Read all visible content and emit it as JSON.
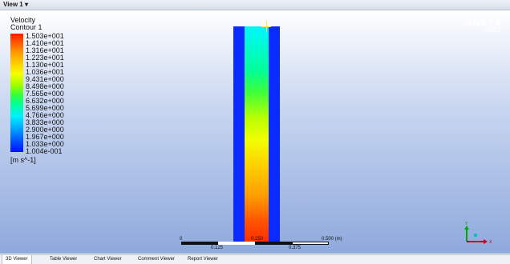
{
  "window": {
    "title": "View 1 ▾"
  },
  "legend": {
    "title_line1": "Velocity",
    "title_line2": "Contour 1",
    "ticks": [
      "1.503e+001",
      "1.410e+001",
      "1.316e+001",
      "1.223e+001",
      "1.130e+001",
      "1.036e+001",
      "9.431e+000",
      "8.498e+000",
      "7.565e+000",
      "6.632e+000",
      "5.699e+000",
      "4.766e+000",
      "3.833e+000",
      "2.900e+000",
      "1.967e+000",
      "1.033e+000",
      "1.004e-001"
    ],
    "units": "[m s^-1]"
  },
  "brand": {
    "name": "ANSYS",
    "version": "R16.2"
  },
  "scale_bar": {
    "labels_top": [
      "0",
      "0.250",
      "0.500 (m)"
    ],
    "labels_bottom": [
      "0.125",
      "0.375"
    ]
  },
  "triad": {
    "y": "Y",
    "x": "X"
  },
  "tabs": [
    "3D Viewer",
    "Table Viewer",
    "Chart Viewer",
    "Comment Viewer",
    "Report Viewer"
  ],
  "colors": {
    "wall": "#0a2bff",
    "probe": "#ffe54a",
    "active_tab_bg": "#ffffff"
  }
}
